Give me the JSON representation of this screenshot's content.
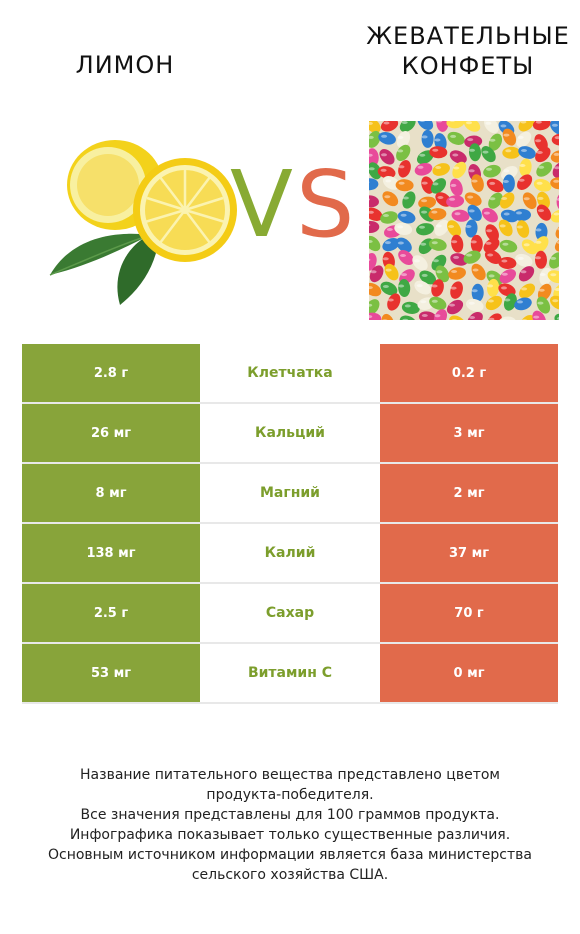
{
  "header": {
    "left_title": "ЛИМОН",
    "right_title_line1": "ЖЕВАТЕЛЬНЫЕ",
    "right_title_line2": "КОНФЕТЫ",
    "vs_v": "V",
    "vs_s": "S"
  },
  "colors": {
    "left_accent": "#88a43a",
    "right_accent": "#e16a4b",
    "nutrient_text": "#7c9e2c"
  },
  "rows": [
    {
      "left": "2.8 г",
      "nutrient": "Клетчатка",
      "right": "0.2 г"
    },
    {
      "left": "26 мг",
      "nutrient": "Кальций",
      "right": "3 мг"
    },
    {
      "left": "8 мг",
      "nutrient": "Магний",
      "right": "2 мг"
    },
    {
      "left": "138 мг",
      "nutrient": "Калий",
      "right": "37 мг"
    },
    {
      "left": "2.5 г",
      "nutrient": "Сахар",
      "right": "70 г"
    },
    {
      "left": "53 мг",
      "nutrient": "Витамин C",
      "right": "0 мг"
    }
  ],
  "footer": {
    "line1": "Название питательного вещества представлено цветом",
    "line2": "продукта-победителя.",
    "line3": "Все значения представлены для 100 граммов продукта.",
    "line4": "Инфографика показывает только существенные различия.",
    "line5": "Основным источником информации является база министерства",
    "line6": "сельского хозяйства США."
  }
}
